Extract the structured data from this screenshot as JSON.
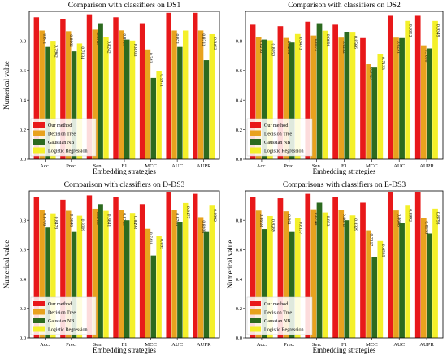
{
  "colors": {
    "our_method": "#e8181a",
    "decision_tree": "#e8a21e",
    "gaussian_nb": "#2c6a1f",
    "logistic_regression": "#f4f02a"
  },
  "chart_data": [
    {
      "type": "bar",
      "title": "Comparison with classifiers on DS1",
      "xlabel": "Embedding strategies",
      "ylabel": "Numerical value",
      "categories": [
        "Acc.",
        "Prec.",
        "Sen.",
        "F1",
        "MCC",
        "AUC",
        "AUPR"
      ],
      "ylim": [
        0.0,
        1.0
      ],
      "yticks": [
        "0.0",
        "0.2",
        "0.4",
        "0.6",
        "0.8"
      ],
      "legend_position": "bottom-left",
      "series": [
        {
          "name": "Our method",
          "values": [
            0.96,
            0.95,
            0.98,
            0.96,
            0.92,
            0.99,
            0.99
          ],
          "labels": [
            "",
            "",
            "",
            "",
            "",
            "",
            ""
          ]
        },
        {
          "name": "Decision Tree",
          "values": [
            0.871,
            0.8662,
            0.8769,
            0.8718,
            0.743,
            0.871,
            0.8713
          ],
          "labels": [
            "0.871",
            "0.8662",
            "0.8769",
            "0.8718",
            "0.743",
            "0.871",
            "0.8713"
          ]
        },
        {
          "name": "Gaussian NB",
          "values": [
            0.76,
            0.73,
            0.92,
            0.81,
            0.55,
            0.76,
            0.67
          ],
          "labels": [
            "",
            "",
            "",
            "",
            "",
            "",
            ""
          ]
        },
        {
          "name": "Logistic Regression",
          "values": [
            0.7962,
            0.7834,
            0.8242,
            0.8033,
            0.5971,
            0.871,
            0.8463
          ],
          "labels": [
            "0.7962",
            "0.7834",
            "0.8242",
            "0.8033",
            "0.5971",
            "",
            "0.8463"
          ]
        }
      ]
    },
    {
      "type": "bar",
      "title": "Comparison with classifiers on DS2",
      "xlabel": "Embedding strategies",
      "ylabel": "",
      "categories": [
        "Acc.",
        "Prec.",
        "Sen.",
        "F1",
        "MCC",
        "AUC",
        "AUPR"
      ],
      "ylim": [
        0.0,
        1.0
      ],
      "yticks": [
        "0.0",
        "0.2",
        "0.4",
        "0.6",
        "0.8"
      ],
      "legend_position": "bottom-left",
      "series": [
        {
          "name": "Our method",
          "values": [
            0.91,
            0.9,
            0.93,
            0.91,
            0.82,
            0.97,
            0.97
          ],
          "labels": [
            "",
            "",
            "",
            "",
            "",
            "",
            ""
          ]
        },
        {
          "name": "Decision Tree",
          "values": [
            0.8276,
            0.8208,
            0.8372,
            0.8232,
            0.6427,
            0.8231,
            0.7656
          ],
          "labels": [
            "0.8276",
            "0.8208",
            "0.8372",
            "0.8232",
            "0.6427",
            "0.8231",
            "0.7656"
          ]
        },
        {
          "name": "Gaussian NB",
          "values": [
            0.81,
            0.79,
            0.92,
            0.86,
            0.62,
            0.82,
            0.75
          ],
          "labels": [
            "",
            "",
            "",
            "",
            "",
            "",
            ""
          ]
        },
        {
          "name": "Logistic Regression",
          "values": [
            0.805,
            0.8473,
            0.8698,
            0.8566,
            0.7133,
            0.9352,
            0.9349
          ],
          "labels": [
            "0.8050",
            "0.8473",
            "0.8698",
            "0.8566",
            "0.7133",
            "0.9352",
            "0.9349"
          ]
        }
      ]
    },
    {
      "type": "bar",
      "title": "Comparison with classifiers on D-DS3",
      "xlabel": "Embedding strategies",
      "ylabel": "Numerical value",
      "categories": [
        "Acc.",
        "Prec.",
        "Sen.",
        "F1",
        "MCC",
        "AUC",
        "AUPR"
      ],
      "ylim": [
        0.0,
        1.0
      ],
      "yticks": [
        "0.0",
        "0.2",
        "0.4",
        "0.6",
        "0.8"
      ],
      "legend_position": "bottom-left",
      "series": [
        {
          "name": "Our method",
          "values": [
            0.96,
            0.94,
            0.97,
            0.96,
            0.91,
            0.99,
            0.98
          ],
          "labels": [
            "",
            "",
            "",
            "",
            "",
            "",
            ""
          ]
        },
        {
          "name": "Decision Tree",
          "values": [
            0.8706,
            0.8646,
            0.8788,
            0.8713,
            0.7418,
            0.8706,
            0.8208
          ],
          "labels": [
            "0.8706",
            "0.8646",
            "0.8788",
            "0.8713",
            "0.7418",
            "0.8706",
            "0.8208"
          ]
        },
        {
          "name": "Gaussian NB",
          "values": [
            0.75,
            0.72,
            0.91,
            0.8,
            0.56,
            0.79,
            0.72
          ],
          "labels": [
            "",
            "",
            "",
            "",
            "",
            "",
            ""
          ]
        },
        {
          "name": "Logistic Regression",
          "values": [
            0.8473,
            0.8309,
            0.8641,
            0.8498,
            0.695,
            0.9177,
            0.8992
          ],
          "labels": [
            "0.8473",
            "0.8309",
            "0.8641",
            "0.8498",
            "0.695",
            "0.9177",
            "0.8992"
          ]
        }
      ]
    },
    {
      "type": "bar",
      "title": "Comparisons with classifiers on E-DS3",
      "xlabel": "Embedding strategies",
      "ylabel": "Numerical value",
      "categories": [
        "Acc.",
        "Prec.",
        "Sen.",
        "F1",
        "MCC",
        "AUC",
        "AUPR"
      ],
      "ylim": [
        0.0,
        1.0
      ],
      "yticks": [
        "0.0",
        "0.2",
        "0.4",
        "0.6",
        "0.8"
      ],
      "legend_position": "bottom-left",
      "series": [
        {
          "name": "Our method",
          "values": [
            0.96,
            0.95,
            0.98,
            0.96,
            0.92,
            0.99,
            0.99
          ],
          "labels": [
            "",
            "",
            "",
            "",
            "",
            "",
            ""
          ]
        },
        {
          "name": "Decision Tree",
          "values": [
            0.8658,
            0.861,
            0.8748,
            0.8678,
            0.7317,
            0.8668,
            0.8158
          ],
          "labels": [
            "0.8658",
            "0.861",
            "0.8748",
            "0.8678",
            "0.7317",
            "0.8668",
            "0.8158"
          ]
        },
        {
          "name": "Gaussian NB",
          "values": [
            0.74,
            0.72,
            0.92,
            0.8,
            0.55,
            0.78,
            0.71
          ],
          "labels": [
            "",
            "",
            "",
            "",
            "",
            "",
            ""
          ]
        },
        {
          "name": "Logistic Regression",
          "values": [
            0.8289,
            0.8137,
            0.853,
            0.8329,
            0.6585,
            0.8992,
            0.8793
          ],
          "labels": [
            "0.8289",
            "0.8137",
            "0.853",
            "0.8329",
            "0.6585",
            "0.8992",
            "0.8793"
          ]
        }
      ]
    }
  ]
}
